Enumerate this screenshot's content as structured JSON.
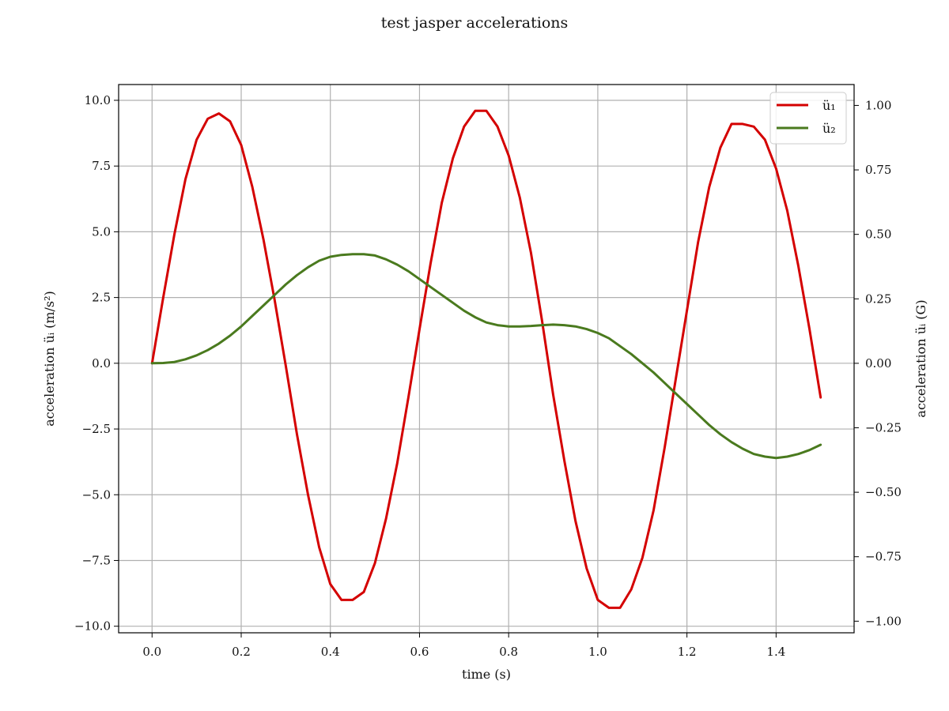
{
  "chart_data": {
    "type": "line",
    "title": "test jasper accelerations",
    "xlabel": "time (s)",
    "ylabel_left": "acceleration üᵢ (m/s²)",
    "ylabel_right": "acceleration üᵢ (G)",
    "xlim": [
      -0.075,
      1.575
    ],
    "ylim_left": [
      -10.25,
      10.6
    ],
    "ylim_right": [
      -1.045,
      1.081
    ],
    "x_ticks": [
      0.0,
      0.2,
      0.4,
      0.6,
      0.8,
      1.0,
      1.2,
      1.4
    ],
    "x_tick_labels": [
      "0.0",
      "0.2",
      "0.4",
      "0.6",
      "0.8",
      "1.0",
      "1.2",
      "1.4"
    ],
    "y_ticks_left": [
      -10.0,
      -7.5,
      -5.0,
      -2.5,
      0.0,
      2.5,
      5.0,
      7.5,
      10.0
    ],
    "y_tick_labels_left": [
      "−10.0",
      "−7.5",
      "−5.0",
      "−2.5",
      "0.0",
      "2.5",
      "5.0",
      "7.5",
      "10.0"
    ],
    "y_ticks_right": [
      -1.0,
      -0.75,
      -0.5,
      -0.25,
      0.0,
      0.25,
      0.5,
      0.75,
      1.0
    ],
    "y_tick_labels_right": [
      "−1.00",
      "−0.75",
      "−0.50",
      "−0.25",
      "0.00",
      "0.25",
      "0.50",
      "0.75",
      "1.00"
    ],
    "grid": true,
    "legend_position": "top-right",
    "series": [
      {
        "name": "ü₁",
        "color": "#d40000",
        "x": [
          0.0,
          0.025,
          0.05,
          0.075,
          0.1,
          0.125,
          0.15,
          0.175,
          0.2,
          0.225,
          0.25,
          0.275,
          0.3,
          0.325,
          0.35,
          0.375,
          0.4,
          0.425,
          0.45,
          0.475,
          0.5,
          0.525,
          0.55,
          0.575,
          0.6,
          0.625,
          0.65,
          0.675,
          0.7,
          0.725,
          0.75,
          0.775,
          0.8,
          0.825,
          0.85,
          0.875,
          0.9,
          0.925,
          0.95,
          0.975,
          1.0,
          1.025,
          1.05,
          1.075,
          1.1,
          1.125,
          1.15,
          1.175,
          1.2,
          1.225,
          1.25,
          1.275,
          1.3,
          1.325,
          1.35,
          1.375,
          1.4,
          1.425,
          1.45,
          1.475,
          1.5
        ],
        "y": [
          0.0,
          2.5,
          4.9,
          7.0,
          8.5,
          9.3,
          9.5,
          9.2,
          8.3,
          6.7,
          4.7,
          2.4,
          -0.1,
          -2.7,
          -5.0,
          -7.0,
          -8.4,
          -9.0,
          -9.0,
          -8.7,
          -7.6,
          -5.9,
          -3.8,
          -1.3,
          1.3,
          3.8,
          6.1,
          7.8,
          9.0,
          9.6,
          9.6,
          9.0,
          7.9,
          6.3,
          4.2,
          1.6,
          -1.2,
          -3.7,
          -6.0,
          -7.8,
          -9.0,
          -9.3,
          -9.3,
          -8.6,
          -7.4,
          -5.6,
          -3.2,
          -0.6,
          2.0,
          4.6,
          6.7,
          8.2,
          9.1,
          9.1,
          9.0,
          8.5,
          7.4,
          5.8,
          3.7,
          1.3,
          -1.3
        ]
      },
      {
        "name": "ü₂",
        "color": "#4a7a1e",
        "x": [
          0.0,
          0.025,
          0.05,
          0.075,
          0.1,
          0.125,
          0.15,
          0.175,
          0.2,
          0.225,
          0.25,
          0.275,
          0.3,
          0.325,
          0.35,
          0.375,
          0.4,
          0.425,
          0.45,
          0.475,
          0.5,
          0.525,
          0.55,
          0.575,
          0.6,
          0.625,
          0.65,
          0.675,
          0.7,
          0.725,
          0.75,
          0.775,
          0.8,
          0.825,
          0.85,
          0.875,
          0.9,
          0.925,
          0.95,
          0.975,
          1.0,
          1.025,
          1.05,
          1.075,
          1.1,
          1.125,
          1.15,
          1.175,
          1.2,
          1.225,
          1.25,
          1.275,
          1.3,
          1.325,
          1.35,
          1.375,
          1.4,
          1.425,
          1.45,
          1.475,
          1.5
        ],
        "y": [
          0.0,
          0.01,
          0.05,
          0.15,
          0.3,
          0.5,
          0.75,
          1.05,
          1.4,
          1.8,
          2.2,
          2.6,
          3.0,
          3.35,
          3.65,
          3.9,
          4.05,
          4.12,
          4.15,
          4.15,
          4.1,
          3.95,
          3.75,
          3.5,
          3.2,
          2.9,
          2.6,
          2.3,
          2.0,
          1.75,
          1.55,
          1.45,
          1.4,
          1.4,
          1.42,
          1.45,
          1.47,
          1.45,
          1.4,
          1.3,
          1.15,
          0.95,
          0.65,
          0.35,
          0.0,
          -0.35,
          -0.75,
          -1.15,
          -1.55,
          -1.95,
          -2.35,
          -2.7,
          -3.0,
          -3.25,
          -3.45,
          -3.55,
          -3.6,
          -3.55,
          -3.45,
          -3.3,
          -3.1
        ]
      }
    ]
  }
}
